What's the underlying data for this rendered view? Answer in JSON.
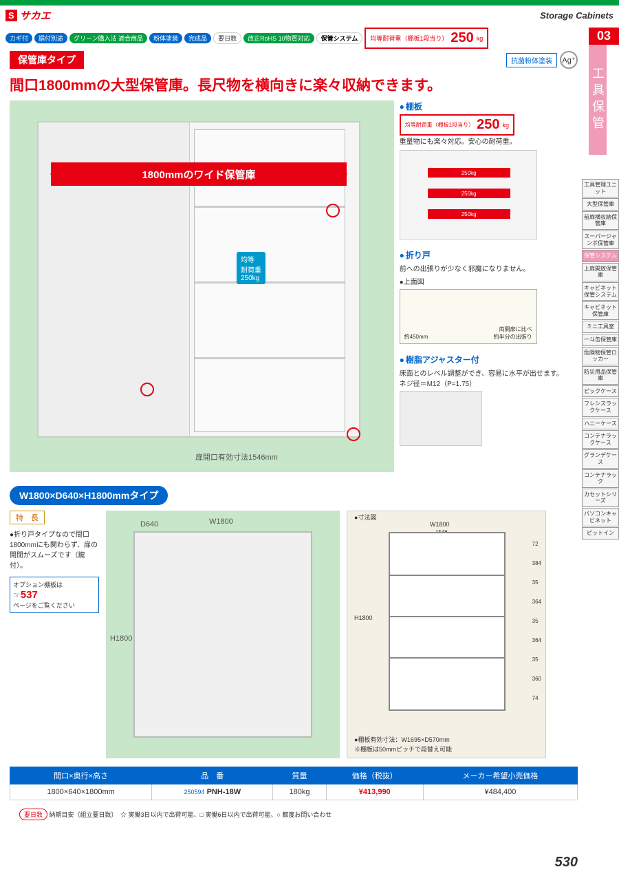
{
  "brand": {
    "s": "S",
    "name": "サカエ"
  },
  "header": {
    "subtitle": "Storage Cabinets"
  },
  "badges": [
    "カギ付",
    "据付別途",
    "グリーン購入法 適合商品",
    "粉体塗装",
    "完成品",
    "要日数",
    "改正RoHS 10物質対応",
    "保管システム"
  ],
  "load": {
    "label": "均等耐荷重（棚板1段当り）",
    "value": "250",
    "unit": "kg"
  },
  "side": {
    "num": "03",
    "title": "工具保管"
  },
  "sidenav": [
    "工具管理ユニット",
    "大型保管庫",
    "前扉横収納保管庫",
    "スーパージャンボ保管庫",
    "保管システム",
    "上扉開放保管庫",
    "キャビネット保管システム",
    "キャビネット保管庫",
    "ミニ工具室",
    "一斗缶保管庫",
    "危険物保管ロッカー",
    "防災用品保管庫",
    "ピックケース",
    "フレシスラックケース",
    "ハニーケース",
    "コンテナラックケース",
    "グランデケース",
    "コンテナラック",
    "カセットシリーズ",
    "パソコンキャビネット",
    "ピットイン"
  ],
  "sidenav_active": 4,
  "type_badge": "保管庫タイプ",
  "ag": {
    "box": "抗菌粉体塗装",
    "symbol": "Ag⁺"
  },
  "headline": "間口1800mmの大型保管庫。長尺物を横向きに楽々収納できます。",
  "hero": {
    "arrow": "1800mmのワイド保管庫",
    "shelf_label": "均等\n耐荷重\n250kg",
    "door_dim": "扉開口有効寸法1546mm"
  },
  "info": {
    "shelf": {
      "title": "棚板",
      "load_label": "均等耐荷重（棚板1段当り）",
      "load": "250",
      "unit": "kg",
      "text": "重量物にも楽々対応。安心の耐荷重。",
      "arrows": [
        "250kg",
        "250kg",
        "250kg"
      ]
    },
    "door": {
      "title": "折り戸",
      "text": "前への出張りが少なく邪魔になりません。",
      "top_label": "●上面図",
      "dim": "約450mm",
      "note": "両開扉に比べ\n約半分の出張り"
    },
    "adjuster": {
      "title": "樹脂アジャスター付",
      "text": "床面とのレベル調整ができ、容易に水平が出せます。",
      "spec": "ネジ径＝M12（P=1.75）"
    }
  },
  "section2": {
    "header": "W1800×D640×H1800mmタイプ",
    "feat_title": "特　長",
    "feat_text": "●折り戸タイプなので間口1800mmにも関わらず、扉の開閉がスムーズです（鍵付）。",
    "option": {
      "label": "オプション棚板は",
      "page": "537",
      "note": "ページをご覧ください"
    },
    "iso": {
      "w": "W1800",
      "d": "D640",
      "h": "H1800"
    },
    "dim": {
      "title": "●寸法図",
      "w": "W1800",
      "inner_w": "1546",
      "h": "H1800",
      "heights": [
        "72",
        "384",
        "35",
        "364",
        "35",
        "364",
        "35",
        "360",
        "74"
      ],
      "note1": "●棚板有効寸法：W1695×D570mm",
      "note2": "※棚板は50mmピッチで段替え可能"
    }
  },
  "table": {
    "headers": [
      "間口×奥行×高さ",
      "品　番",
      "質量",
      "価格（税抜）",
      "メーカー希望小売価格"
    ],
    "row": {
      "dims": "1800×640×1800mm",
      "code_prefix": "250594",
      "code": "PNH-18W",
      "mass": "180kg",
      "price": "¥413,990",
      "msrp": "¥484,400"
    }
  },
  "footer": {
    "text": "納期目安（組立要日数）　☆ 実働3日以内で出荷可能、□ 実働6日以内で出荷可能、○ 都度お問い合わせ",
    "badge": "要日数"
  },
  "page_number": "530"
}
